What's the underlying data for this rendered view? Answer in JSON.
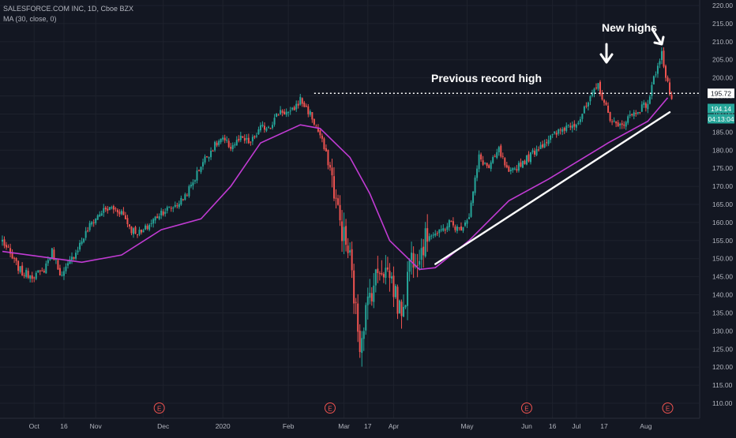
{
  "header": {
    "title": "SALESFORCE.COM INC, 1D, Cboe BZX",
    "indicator": "MA (30, close, 0)"
  },
  "annotations": {
    "previous_record": "Previous record high",
    "new_highs": "New highs"
  },
  "price_labels": {
    "record_line": "195.72",
    "last_price": "194.14",
    "countdown": "04:13:04"
  },
  "earnings_marker": "E",
  "colors": {
    "background": "#131722",
    "grid": "#1e222d",
    "up": "#26a69a",
    "down": "#ef5350",
    "ma": "#c13bd3",
    "annotation": "#ffffff",
    "axis_text": "#b2b5be"
  },
  "chart_data": {
    "type": "candlestick",
    "title": "SALESFORCE.COM INC, 1D, Cboe BZX",
    "ylim": [
      105,
      220
    ],
    "y_ticks": [
      110,
      115,
      120,
      125,
      130,
      135,
      140,
      145,
      150,
      155,
      160,
      165,
      170,
      175,
      180,
      185,
      190,
      195,
      200,
      205,
      210,
      215,
      220
    ],
    "x_labels": [
      "Oct",
      "16",
      "Nov",
      "Dec",
      "2020",
      "Feb",
      "Mar",
      "17",
      "Apr",
      "May",
      "Jun",
      "16",
      "Jul",
      "17",
      "Aug"
    ],
    "x_label_positions": [
      16,
      31,
      47,
      81,
      111,
      144,
      172,
      184,
      197,
      234,
      264,
      277,
      289,
      303,
      324
    ],
    "bar_count": 338,
    "earnings_positions": [
      79,
      165,
      264,
      335
    ],
    "record_high": 195.72,
    "last_price": 194.14,
    "ma_series": {
      "name": "MA (30, close, 0)",
      "points": [
        [
          0,
          152
        ],
        [
          20,
          150.5
        ],
        [
          40,
          149
        ],
        [
          60,
          151
        ],
        [
          80,
          158
        ],
        [
          100,
          161
        ],
        [
          115,
          170
        ],
        [
          130,
          182
        ],
        [
          150,
          187
        ],
        [
          160,
          186
        ],
        [
          175,
          178
        ],
        [
          185,
          168
        ],
        [
          195,
          155
        ],
        [
          210,
          147
        ],
        [
          218,
          147.5
        ],
        [
          235,
          155
        ],
        [
          255,
          166
        ],
        [
          275,
          172
        ],
        [
          290,
          177
        ],
        [
          305,
          182
        ],
        [
          325,
          188
        ],
        [
          335,
          194.5
        ]
      ]
    },
    "trendline": {
      "points": [
        [
          218,
          148.5
        ],
        [
          336,
          190.5
        ]
      ]
    },
    "anchors": [
      [
        0,
        155
      ],
      [
        5,
        150
      ],
      [
        10,
        146
      ],
      [
        15,
        145.5
      ],
      [
        20,
        146
      ],
      [
        25,
        152
      ],
      [
        30,
        145
      ],
      [
        35,
        150
      ],
      [
        40,
        155
      ],
      [
        45,
        160
      ],
      [
        50,
        163
      ],
      [
        55,
        164
      ],
      [
        60,
        163
      ],
      [
        65,
        158
      ],
      [
        70,
        157
      ],
      [
        75,
        160
      ],
      [
        80,
        163
      ],
      [
        85,
        164
      ],
      [
        90,
        166
      ],
      [
        95,
        170
      ],
      [
        100,
        176
      ],
      [
        105,
        180
      ],
      [
        110,
        183
      ],
      [
        115,
        181
      ],
      [
        120,
        183
      ],
      [
        125,
        182
      ],
      [
        130,
        186
      ],
      [
        135,
        187
      ],
      [
        140,
        191
      ],
      [
        145,
        190
      ],
      [
        150,
        194
      ],
      [
        155,
        190
      ],
      [
        160,
        184
      ],
      [
        165,
        175
      ],
      [
        170,
        160
      ],
      [
        175,
        150
      ],
      [
        178,
        135
      ],
      [
        180,
        127
      ],
      [
        182,
        133
      ],
      [
        185,
        140
      ],
      [
        190,
        148
      ],
      [
        195,
        146
      ],
      [
        198,
        140
      ],
      [
        200,
        135
      ],
      [
        203,
        140
      ],
      [
        205,
        150
      ],
      [
        210,
        152
      ],
      [
        215,
        157
      ],
      [
        220,
        157
      ],
      [
        225,
        160
      ],
      [
        230,
        158
      ],
      [
        235,
        162
      ],
      [
        240,
        178
      ],
      [
        245,
        175
      ],
      [
        250,
        180
      ],
      [
        255,
        173
      ],
      [
        260,
        176
      ],
      [
        265,
        178
      ],
      [
        270,
        181
      ],
      [
        275,
        183
      ],
      [
        280,
        185
      ],
      [
        285,
        187
      ],
      [
        290,
        188
      ],
      [
        295,
        193
      ],
      [
        300,
        198
      ],
      [
        305,
        190
      ],
      [
        310,
        186
      ],
      [
        315,
        189
      ],
      [
        320,
        191
      ],
      [
        325,
        193
      ],
      [
        330,
        204
      ],
      [
        332,
        207
      ],
      [
        334,
        200
      ],
      [
        336,
        196
      ],
      [
        337,
        194.14
      ]
    ]
  }
}
